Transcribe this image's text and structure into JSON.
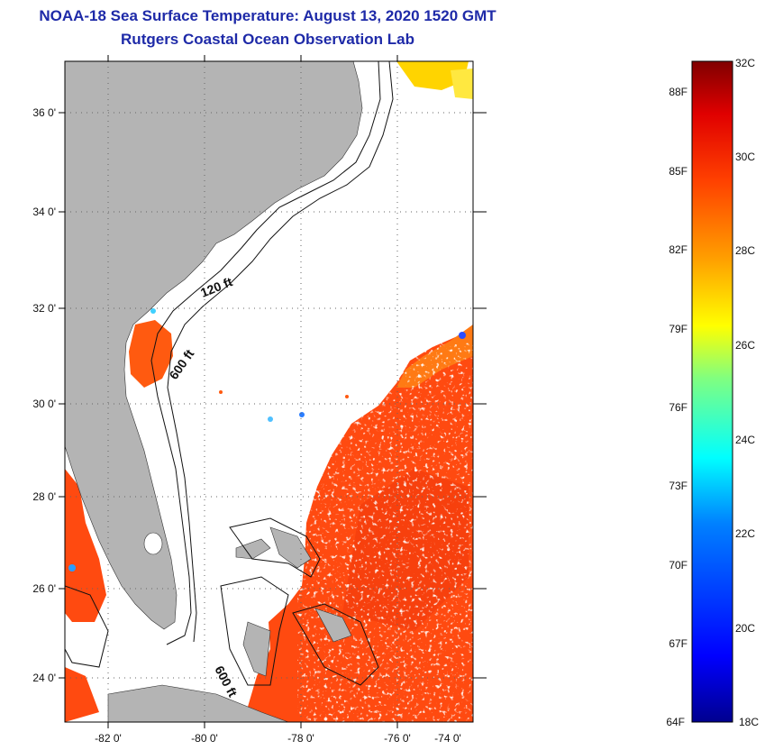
{
  "title": {
    "line1": "NOAA-18 Sea Surface Temperature:  August 13, 2020 1520 GMT",
    "line2": "Rutgers Coastal Ocean Observation Lab"
  },
  "map": {
    "lon_labels": [
      "-82 0'",
      "-80 0'",
      "-78 0'",
      "-76 0'",
      "-74 0'"
    ],
    "lat_labels": [
      "36 0'",
      "34 0'",
      "32 0'",
      "30 0'",
      "28 0'",
      "26 0'",
      "24 0'"
    ],
    "contour_labels": [
      "120 ft",
      "600 ft",
      "600 ft"
    ],
    "colors": {
      "land": "#b4b4b4",
      "warm_water": "#ff4a10",
      "cool_water": "#2a4dff"
    }
  },
  "colorbar": {
    "celsius": [
      "32C",
      "30C",
      "28C",
      "26C",
      "24C",
      "22C",
      "20C",
      "18C"
    ],
    "fahrenheit": [
      "88F",
      "85F",
      "82F",
      "79F",
      "76F",
      "73F",
      "70F",
      "67F",
      "64F"
    ],
    "stops": [
      "#00008f",
      "#0000ff",
      "#0080ff",
      "#00ffff",
      "#80ff80",
      "#ffff00",
      "#ffa000",
      "#ff4000",
      "#e00000",
      "#800000"
    ]
  }
}
